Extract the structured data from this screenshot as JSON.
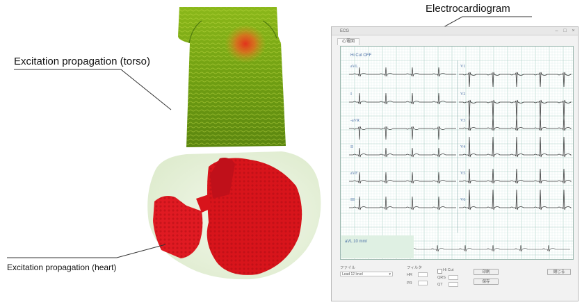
{
  "callouts": {
    "electrocardiogram": "Electrocardiogram",
    "torso": "Excitation propagation (torso)",
    "heart": "Excitation propagation (heart)"
  },
  "ecg_window": {
    "title": "　ECG　",
    "tab": "心電図",
    "header_line": "Hi Cut OFF",
    "leads_left": [
      "aVL",
      "I",
      "-aVR",
      "II",
      "aVF",
      "III"
    ],
    "leads_right": [
      "V1",
      "V2",
      "V3",
      "V4",
      "V5",
      "V6"
    ],
    "rhythm_label": "aVL  10 mm/",
    "controls": {
      "file_label": "ファイル",
      "file_value": "Lead 12 level",
      "filter_label": "フィルタ",
      "hicut_label": "Hi Cut",
      "hr_label": "HR",
      "qt_label": "QT",
      "qrs_label": "QRS",
      "pr_label": "PR",
      "btn_print": "印刷",
      "btn_save": "保存",
      "btn_close": "閉じる"
    }
  },
  "colors": {
    "grid_minor": "#d6ebe6",
    "grid_major": "#a9d0c6",
    "trace": "#3a3a3a",
    "torso_green": "#6a9a12",
    "torso_hot": "#e0391c",
    "heart_red": "#d8141b",
    "heart_bg": "#e7f1dc"
  }
}
